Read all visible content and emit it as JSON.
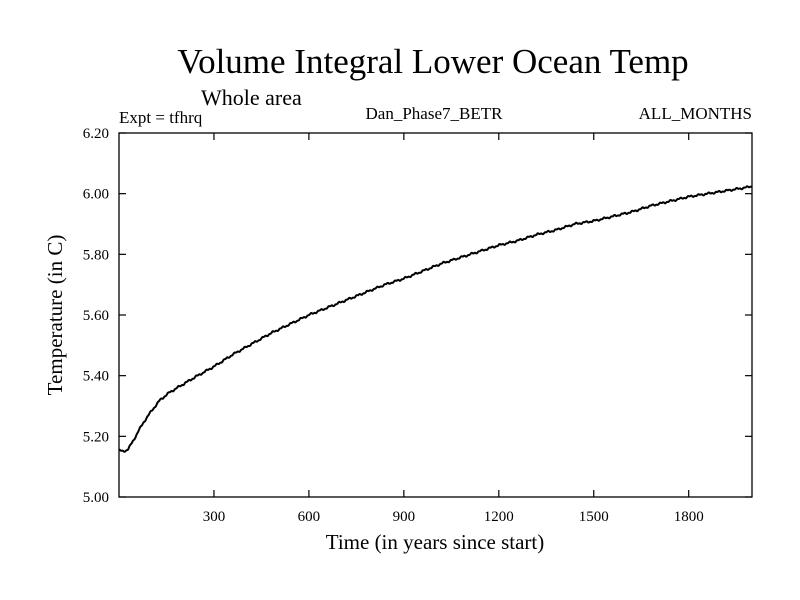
{
  "chart_data": {
    "type": "line",
    "title": "Volume Integral Lower Ocean Temp",
    "subtitle": "Whole area",
    "header_left": "Expt = tfhrq",
    "header_center": "Dan_Phase7_BETR",
    "header_right": "ALL_MONTHS",
    "xlabel": "Time (in years since start)",
    "ylabel": "Temperature (in C)",
    "xlim": [
      0,
      2000
    ],
    "ylim": [
      5.0,
      6.2
    ],
    "x_ticks": [
      300,
      600,
      900,
      1200,
      1500,
      1800
    ],
    "x_tick_labels": [
      "300",
      "600",
      "900",
      "1200",
      "1500",
      "1800"
    ],
    "y_ticks": [
      5.0,
      5.2,
      5.4,
      5.6,
      5.8,
      6.0,
      6.2
    ],
    "y_tick_labels": [
      "5.00",
      "5.20",
      "5.40",
      "5.60",
      "5.80",
      "6.00",
      "6.20"
    ],
    "grid": false,
    "series": [
      {
        "name": "tfhrq",
        "color": "#000000",
        "x": [
          0,
          10,
          20,
          30,
          45,
          60,
          80,
          100,
          130,
          160,
          200,
          240,
          300,
          360,
          420,
          480,
          540,
          600,
          660,
          720,
          780,
          840,
          900,
          960,
          1020,
          1080,
          1140,
          1200,
          1260,
          1320,
          1380,
          1440,
          1500,
          1560,
          1620,
          1680,
          1740,
          1800,
          1860,
          1920,
          1980,
          2000
        ],
        "values": [
          5.155,
          5.15,
          5.152,
          5.16,
          5.185,
          5.215,
          5.25,
          5.28,
          5.32,
          5.345,
          5.37,
          5.395,
          5.43,
          5.47,
          5.505,
          5.54,
          5.57,
          5.6,
          5.625,
          5.65,
          5.675,
          5.7,
          5.72,
          5.745,
          5.77,
          5.79,
          5.81,
          5.83,
          5.845,
          5.865,
          5.88,
          5.9,
          5.91,
          5.925,
          5.94,
          5.96,
          5.975,
          5.99,
          6.0,
          6.01,
          6.02,
          6.025
        ]
      }
    ]
  }
}
